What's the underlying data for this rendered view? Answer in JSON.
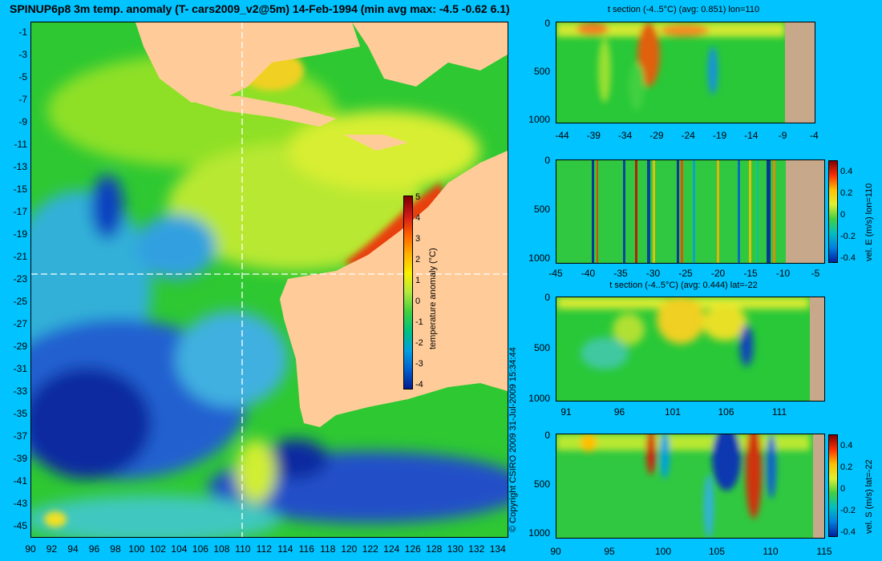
{
  "title": "SPINUP6p8 3m temp. anomaly (T- cars2009_v2@5m) 14-Feb-1994 (min avg max: -4.5 -0.62 6.1)",
  "map": {
    "y_ticks": [
      "-1",
      "-3",
      "-5",
      "-7",
      "-9",
      "-11",
      "-13",
      "-15",
      "-17",
      "-19",
      "-21",
      "-23",
      "-25",
      "-27",
      "-29",
      "-31",
      "-33",
      "-35",
      "-37",
      "-39",
      "-41",
      "-43",
      "-45"
    ],
    "x_ticks": [
      "90",
      "92",
      "94",
      "96",
      "98",
      "100",
      "102",
      "104",
      "106",
      "108",
      "110",
      "112",
      "114",
      "116",
      "118",
      "120",
      "122",
      "124",
      "126",
      "128",
      "130",
      "132",
      "134"
    ],
    "crosshair": {
      "lon": 110,
      "lat": -22
    },
    "colorbar": {
      "label": "temperature anomaly (°C)",
      "ticks": [
        "5",
        "4",
        "3",
        "2",
        "1",
        "0",
        "-1",
        "-2",
        "-3",
        "-4"
      ]
    },
    "copyright": "© Copyright CSIRO 2009   31-Jul-2009 15:34:44"
  },
  "sections": {
    "temp_lon": {
      "title": "t section (-4..5°C) (avg: 0.851) lon=110",
      "y_ticks": [
        "0",
        "500",
        "1000"
      ],
      "x_ticks": [
        "-44",
        "-39",
        "-34",
        "-29",
        "-24",
        "-19",
        "-14",
        "-9",
        "-4"
      ]
    },
    "vel_e": {
      "x_ticks": [
        "-45",
        "-40",
        "-35",
        "-30",
        "-25",
        "-20",
        "-15",
        "-10",
        "-5"
      ],
      "y_ticks": [
        "0",
        "500",
        "1000"
      ],
      "cb_ticks": [
        "0.4",
        "0.2",
        "0",
        "-0.2",
        "-0.4"
      ],
      "cb_label": "vel. E (m/s) lon=110"
    },
    "temp_lat": {
      "title": "t section (-4..5°C) (avg: 0.444) lat=-22",
      "y_ticks": [
        "0",
        "500",
        "1000"
      ],
      "x_ticks": [
        "91",
        "96",
        "101",
        "106",
        "111"
      ]
    },
    "vel_s": {
      "x_ticks": [
        "90",
        "95",
        "100",
        "105",
        "110",
        "115"
      ],
      "y_ticks": [
        "0",
        "500",
        "1000"
      ],
      "cb_ticks": [
        "0.4",
        "0.2",
        "0",
        "-0.2",
        "-0.4"
      ],
      "cb_label": "vel. S (m/s) lat=-22"
    }
  },
  "chart_data": [
    {
      "type": "heatmap",
      "title": "SPINUP6p8 3m temp. anomaly (T- cars2009_v2@5m) 14-Feb-1994 (min avg max: -4.5 -0.62 6.1)",
      "x_range": [
        90,
        135
      ],
      "y_range": [
        -45,
        0
      ],
      "value_range": [
        -4,
        5
      ],
      "min": -4.5,
      "avg": -0.62,
      "max": 6.1,
      "colorbar_label": "temperature anomaly (°C)"
    },
    {
      "type": "heatmap",
      "title": "t section (-4..5°C) (avg: 0.851) lon=110",
      "x_range": [
        -45,
        -2
      ],
      "y_range": [
        0,
        1000
      ],
      "value_range": [
        -4,
        5
      ],
      "avg": 0.851
    },
    {
      "type": "heatmap",
      "x_range": [
        -45,
        -2
      ],
      "y_range": [
        0,
        1000
      ],
      "value_range": [
        -0.4,
        0.4
      ],
      "colorbar_label": "vel. E (m/s) lon=110"
    },
    {
      "type": "heatmap",
      "title": "t section (-4..5°C) (avg: 0.444) lat=-22",
      "x_range": [
        90,
        115
      ],
      "y_range": [
        0,
        1000
      ],
      "value_range": [
        -4,
        5
      ],
      "avg": 0.444
    },
    {
      "type": "heatmap",
      "x_range": [
        90,
        115
      ],
      "y_range": [
        0,
        1000
      ],
      "value_range": [
        -0.4,
        0.4
      ],
      "colorbar_label": "vel. S (m/s) lat=-22"
    }
  ],
  "colors": {
    "background": "#00c3ff",
    "land": "#ffcc99",
    "section_land": "#c8a88a"
  }
}
